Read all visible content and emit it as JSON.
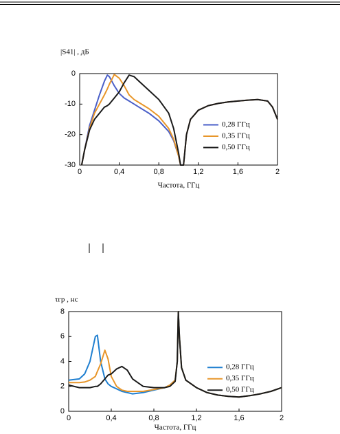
{
  "chart_data": [
    {
      "type": "line",
      "y_label": "|S41| , дБ",
      "x_label": "Частота, ГГц",
      "x": [
        0.02,
        0.05,
        0.1,
        0.15,
        0.2,
        0.25,
        0.28,
        0.3,
        0.35,
        0.4,
        0.45,
        0.5,
        0.55,
        0.6,
        0.7,
        0.8,
        0.9,
        0.95,
        1.0,
        1.02,
        1.05,
        1.08,
        1.12,
        1.2,
        1.3,
        1.4,
        1.5,
        1.6,
        1.7,
        1.8,
        1.9,
        1.95,
        2.0
      ],
      "series": [
        {
          "name": "0,28  ГГц",
          "color": "#4a5fc8",
          "values": [
            -30,
            -25,
            -17,
            -12,
            -7,
            -2.5,
            -0.5,
            -1,
            -4,
            -6.5,
            -8,
            -9,
            -10,
            -11,
            -13,
            -15.5,
            -19,
            -22,
            -27,
            -30,
            -30,
            -20,
            -15,
            -12,
            -10.5,
            -9.8,
            -9.3,
            -9,
            -8.7,
            -8.5,
            -9,
            -11,
            -15
          ]
        },
        {
          "name": "0,35  ГГц",
          "color": "#e8962a",
          "values": [
            -30,
            -25,
            -18,
            -13,
            -10,
            -7,
            -5,
            -3.5,
            -0.3,
            -1.5,
            -4,
            -7,
            -8.5,
            -9.5,
            -11.5,
            -14,
            -18,
            -21.5,
            -27,
            -30,
            -30,
            -20,
            -15,
            -12,
            -10.5,
            -9.8,
            -9.3,
            -9,
            -8.7,
            -8.5,
            -9,
            -11,
            -15
          ]
        },
        {
          "name": "0,50  ГГц",
          "color": "#1a1a1a",
          "values": [
            -30,
            -25,
            -18.5,
            -15,
            -13,
            -11,
            -10.5,
            -10,
            -8,
            -6,
            -3,
            -0.5,
            -1,
            -2.5,
            -5.5,
            -8.5,
            -13,
            -18,
            -26,
            -30,
            -30,
            -20,
            -15,
            -12,
            -10.5,
            -9.8,
            -9.3,
            -9,
            -8.7,
            -8.5,
            -9,
            -11,
            -15
          ]
        }
      ],
      "xlim": [
        0,
        2
      ],
      "ylim": [
        -30,
        0
      ],
      "xticks": [
        0,
        {
          "value": 0.4,
          "label": "0,4"
        },
        {
          "value": 0.8,
          "label": "0,8"
        },
        {
          "value": 1.2,
          "label": "1,2"
        },
        {
          "value": 1.6,
          "label": "1,6"
        },
        2
      ],
      "yticks": [
        0,
        -10,
        -20,
        -30
      ],
      "legend": "right"
    },
    {
      "type": "line",
      "y_label": "τгр , нс",
      "x_label": "Частота, ГГц",
      "x": [
        0,
        0.1,
        0.15,
        0.2,
        0.25,
        0.27,
        0.3,
        0.34,
        0.37,
        0.4,
        0.45,
        0.5,
        0.55,
        0.6,
        0.7,
        0.8,
        0.9,
        0.95,
        1.0,
        1.02,
        1.03,
        1.04,
        1.06,
        1.1,
        1.2,
        1.3,
        1.4,
        1.5,
        1.6,
        1.7,
        1.8,
        1.9,
        2.0
      ],
      "series": [
        {
          "name": "0,28  ГГц",
          "color": "#1f7fd0",
          "values": [
            2.5,
            2.6,
            3,
            4,
            6,
            6.1,
            4,
            2.6,
            2.2,
            2,
            1.8,
            1.6,
            1.5,
            1.4,
            1.5,
            1.7,
            1.9,
            2.1,
            2.5,
            4,
            8,
            6,
            3.5,
            2.5,
            1.9,
            1.5,
            1.3,
            1.2,
            1.15,
            1.25,
            1.4,
            1.6,
            1.9
          ]
        },
        {
          "name": "0,35  ГГц",
          "color": "#e8962a",
          "values": [
            2.3,
            2.3,
            2.35,
            2.5,
            2.8,
            3.2,
            3.8,
            4.9,
            4.2,
            2.8,
            2,
            1.7,
            1.6,
            1.6,
            1.6,
            1.75,
            1.9,
            2.1,
            2.5,
            4,
            8,
            6,
            3.5,
            2.5,
            1.9,
            1.5,
            1.3,
            1.2,
            1.15,
            1.25,
            1.4,
            1.6,
            1.9
          ]
        },
        {
          "name": "0,50  ГГц",
          "color": "#1a1a1a",
          "values": [
            2.1,
            1.9,
            1.9,
            1.9,
            2,
            2,
            2.2,
            2.6,
            2.9,
            3,
            3.4,
            3.6,
            3.3,
            2.6,
            2,
            1.9,
            1.9,
            2,
            2.4,
            4,
            8,
            6,
            3.5,
            2.5,
            1.9,
            1.5,
            1.3,
            1.2,
            1.15,
            1.25,
            1.4,
            1.6,
            1.9
          ]
        }
      ],
      "xlim": [
        0,
        2
      ],
      "ylim": [
        0,
        8
      ],
      "xticks": [
        0,
        {
          "value": 0.4,
          "label": "0,4"
        },
        {
          "value": 0.8,
          "label": "0,8"
        },
        {
          "value": 1.2,
          "label": "1,2"
        },
        {
          "value": 1.6,
          "label": "1,6"
        },
        2
      ],
      "yticks": [
        0,
        2,
        4,
        6,
        8
      ],
      "legend": "right"
    }
  ]
}
